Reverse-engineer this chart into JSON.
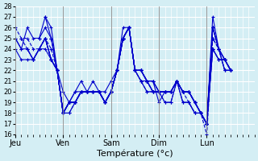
{
  "title": "",
  "xlabel": "Température (°c)",
  "ylabel": "",
  "bg_color": "#d4eef4",
  "grid_color": "#ffffff",
  "line_color": "#0000cc",
  "ylim": [
    16,
    28
  ],
  "yticks": [
    16,
    17,
    18,
    19,
    20,
    21,
    22,
    23,
    24,
    25,
    26,
    27,
    28
  ],
  "day_labels": [
    "Jeu",
    "Ven",
    "Sam",
    "Dim",
    "Lun"
  ],
  "day_positions": [
    0,
    48,
    96,
    144,
    192
  ],
  "total_hours": 240,
  "lines": [
    {
      "x": [
        0,
        6,
        12,
        18,
        24,
        30,
        36,
        42,
        48,
        54,
        60,
        66,
        72,
        78,
        84,
        90,
        96,
        102,
        108,
        114,
        120,
        126,
        132,
        138,
        144,
        150,
        156,
        162,
        168,
        174,
        180,
        186,
        192,
        198,
        204,
        210,
        216
      ],
      "y": [
        25,
        24,
        26,
        25,
        25,
        27,
        25,
        22,
        20,
        19,
        20,
        21,
        20,
        21,
        20,
        20,
        21,
        22,
        26,
        26,
        22,
        21,
        21,
        21,
        19,
        20,
        20,
        21,
        19,
        19,
        18,
        18,
        17,
        26,
        24,
        22,
        22
      ],
      "style": "-",
      "marker": "+"
    },
    {
      "x": [
        0,
        6,
        12,
        18,
        24,
        30,
        36,
        42,
        48,
        54,
        60,
        66,
        72,
        78,
        84,
        90,
        96,
        102,
        108,
        114,
        120,
        126,
        132,
        138,
        144,
        150,
        156,
        162,
        168,
        174,
        180,
        186,
        192,
        198,
        204,
        210,
        216
      ],
      "y": [
        26,
        25,
        25,
        24,
        24,
        25,
        24,
        22,
        18,
        18,
        19,
        20,
        20,
        20,
        20,
        19,
        20,
        22,
        25,
        26,
        22,
        21,
        20,
        20,
        20,
        19,
        19,
        21,
        20,
        19,
        18,
        18,
        16,
        25,
        24,
        22,
        22
      ],
      "style": "--",
      "marker": "+"
    },
    {
      "x": [
        0,
        6,
        12,
        18,
        24,
        30,
        36,
        42,
        48,
        54,
        60,
        66,
        72,
        78,
        84,
        90,
        96,
        102,
        108,
        114,
        120,
        126,
        132,
        138,
        144,
        150,
        156,
        162,
        168,
        174,
        180,
        186,
        192,
        198,
        204,
        210,
        216
      ],
      "y": [
        25,
        24,
        24,
        23,
        24,
        24,
        23,
        22,
        18,
        18,
        19,
        20,
        20,
        20,
        20,
        19,
        20,
        22,
        25,
        26,
        22,
        21,
        20,
        20,
        20,
        19,
        19,
        21,
        19,
        19,
        18,
        18,
        17,
        26,
        24,
        22,
        22
      ],
      "style": "-",
      "marker": "+"
    },
    {
      "x": [
        0,
        6,
        12,
        18,
        24,
        30,
        36,
        42,
        48,
        54,
        60,
        66,
        72,
        78,
        84,
        90,
        96,
        102,
        108,
        114,
        120,
        126,
        132,
        138,
        144,
        150,
        156,
        162,
        168,
        174,
        180,
        186,
        192,
        198,
        204,
        210,
        216
      ],
      "y": [
        24,
        23,
        23,
        23,
        24,
        25,
        23,
        22,
        18,
        19,
        20,
        20,
        20,
        20,
        20,
        19,
        20,
        22,
        25,
        26,
        22,
        22,
        21,
        20,
        20,
        20,
        20,
        21,
        20,
        20,
        19,
        18,
        17,
        27,
        24,
        23,
        22
      ],
      "style": "-",
      "marker": "+"
    },
    {
      "x": [
        6,
        12,
        18,
        24,
        30,
        36,
        42,
        48,
        54,
        60,
        66,
        72,
        78,
        84,
        90,
        96,
        102,
        108,
        114,
        120,
        126,
        132,
        138,
        144,
        150,
        156,
        162,
        168,
        174,
        180,
        186,
        192,
        198,
        204,
        210,
        216
      ],
      "y": [
        25,
        24,
        23,
        24,
        25,
        23,
        22,
        18,
        19,
        19,
        20,
        20,
        20,
        20,
        19,
        20,
        22,
        25,
        26,
        22,
        22,
        21,
        20,
        20,
        20,
        20,
        21,
        20,
        20,
        19,
        18,
        17,
        26,
        24,
        23,
        22
      ],
      "style": "--",
      "marker": "+"
    },
    {
      "x": [
        12,
        18,
        24,
        30,
        36,
        42,
        48,
        54,
        60,
        66,
        72,
        78,
        84,
        90,
        96,
        102,
        108,
        114,
        120,
        126,
        132,
        138,
        144,
        150,
        156,
        162,
        168,
        174,
        180,
        186,
        192,
        198,
        204,
        210,
        216
      ],
      "y": [
        24,
        23,
        24,
        25,
        23,
        22,
        18,
        19,
        19,
        20,
        20,
        20,
        20,
        19,
        20,
        22,
        25,
        26,
        22,
        22,
        21,
        20,
        20,
        20,
        20,
        21,
        20,
        20,
        19,
        18,
        17,
        26,
        24,
        23,
        22
      ],
      "style": "-",
      "marker": "+"
    },
    {
      "x": [
        18,
        24,
        30,
        36,
        42,
        48,
        54,
        60,
        66,
        72,
        78,
        84,
        90,
        96,
        102,
        108,
        114,
        120,
        126,
        132,
        138,
        144,
        150,
        156,
        162,
        168,
        174,
        180,
        186,
        192,
        198,
        204,
        210,
        216
      ],
      "y": [
        23,
        24,
        25,
        23,
        22,
        18,
        19,
        19,
        20,
        20,
        20,
        20,
        19,
        20,
        22,
        25,
        26,
        22,
        22,
        21,
        20,
        20,
        20,
        20,
        21,
        20,
        20,
        19,
        18,
        17,
        25,
        24,
        23,
        22
      ],
      "style": "--",
      "marker": "+"
    },
    {
      "x": [
        24,
        30,
        36,
        42,
        48,
        54,
        60,
        66,
        72,
        78,
        84,
        90,
        96,
        102,
        108,
        114,
        120,
        126,
        132,
        138,
        144,
        150,
        156,
        162,
        168,
        174,
        180,
        186,
        192,
        198,
        204,
        210,
        216
      ],
      "y": [
        25,
        26,
        25,
        22,
        18,
        19,
        19,
        20,
        20,
        20,
        20,
        19,
        20,
        22,
        25,
        26,
        22,
        22,
        21,
        21,
        20,
        20,
        20,
        21,
        20,
        20,
        19,
        18,
        17,
        24,
        23,
        23,
        22
      ],
      "style": "-",
      "marker": "+"
    },
    {
      "x": [
        30,
        36,
        42,
        48,
        54,
        60,
        66,
        72,
        78,
        84,
        90,
        96,
        102,
        108,
        114,
        120,
        126,
        132,
        138,
        144,
        150,
        156,
        162,
        168,
        174,
        180,
        186,
        192,
        198,
        204,
        210,
        216
      ],
      "y": [
        27,
        26,
        22,
        18,
        19,
        19,
        20,
        20,
        20,
        20,
        19,
        20,
        22,
        25,
        26,
        22,
        22,
        21,
        21,
        20,
        20,
        20,
        21,
        20,
        20,
        19,
        18,
        17,
        24,
        23,
        23,
        22
      ],
      "style": "-",
      "marker": "+"
    },
    {
      "x": [
        36,
        42,
        48,
        54,
        60,
        66,
        72,
        78,
        84,
        90,
        96,
        102,
        108,
        114,
        120,
        126,
        132,
        138,
        144,
        150,
        156,
        162,
        168,
        174,
        180,
        186,
        192,
        198,
        204,
        210,
        216
      ],
      "y": [
        25,
        22,
        18,
        19,
        19,
        20,
        20,
        20,
        20,
        19,
        20,
        22,
        25,
        26,
        22,
        22,
        21,
        21,
        20,
        20,
        20,
        21,
        20,
        20,
        19,
        18,
        17,
        24,
        23,
        23,
        22
      ],
      "style": "--",
      "marker": "+"
    }
  ]
}
